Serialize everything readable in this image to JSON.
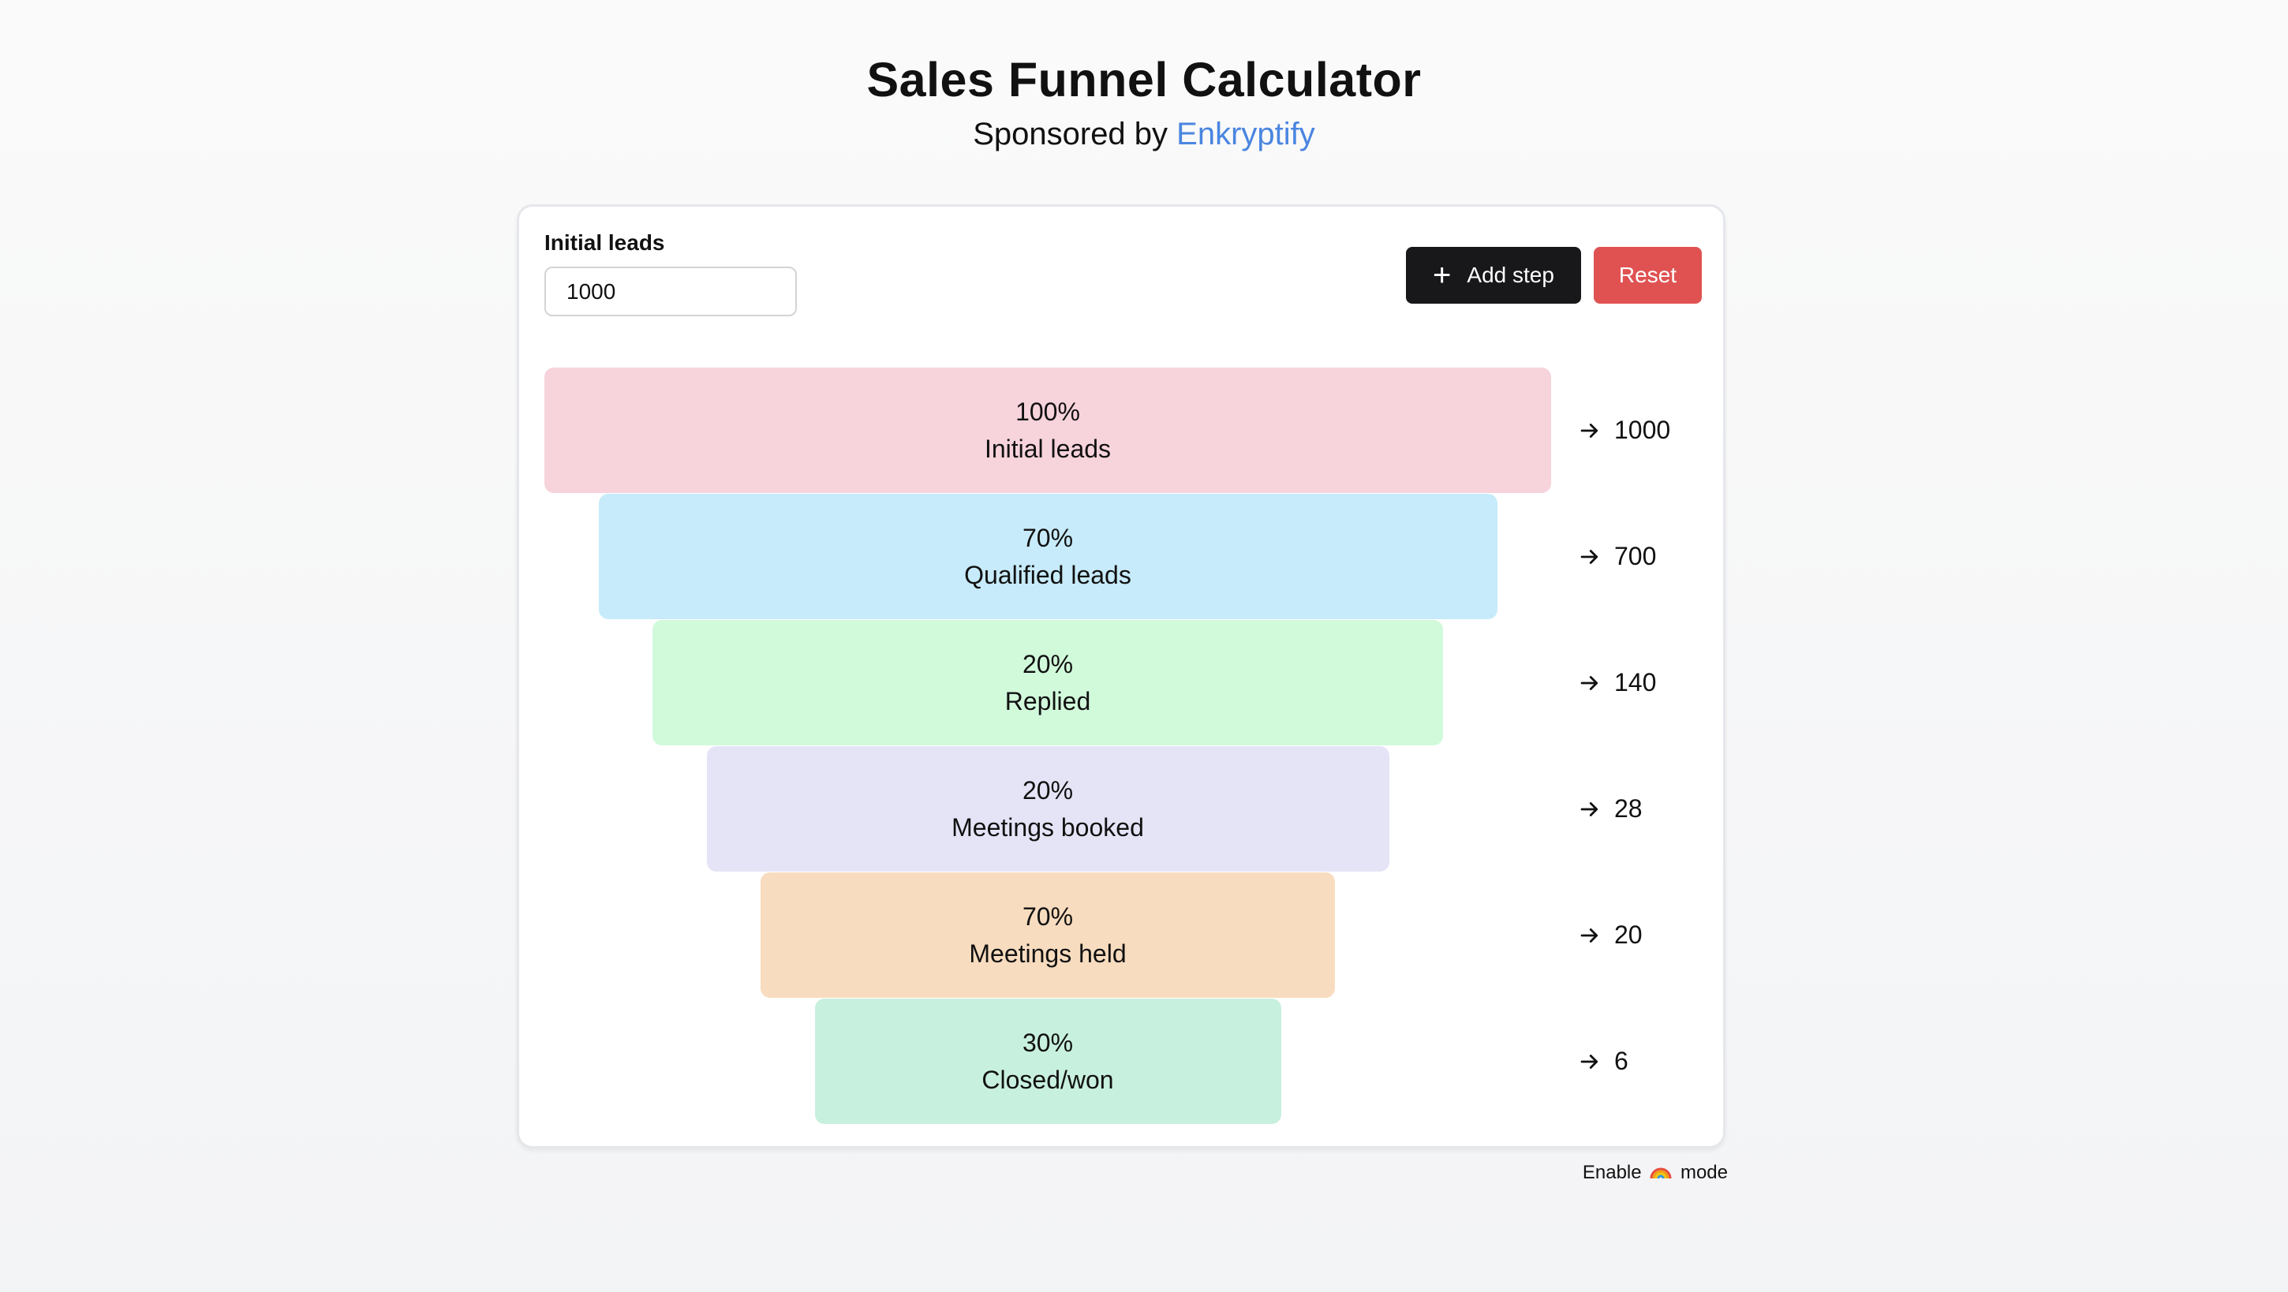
{
  "header": {
    "title": "Sales Funnel Calculator",
    "sponsor_prefix": "Sponsored by",
    "sponsor_name": "Enkryptify",
    "sponsor_color": "#4a86e0"
  },
  "controls": {
    "initial_leads_label": "Initial leads",
    "initial_leads_value": "1000",
    "add_step_label": "Add step",
    "add_step_icon": "plus-icon",
    "reset_label": "Reset",
    "reset_color": "#e05252"
  },
  "funnel": {
    "stages": [
      {
        "percent": "100%",
        "label": "Initial leads",
        "result": "1000",
        "color": "#f7d3dc"
      },
      {
        "percent": "70%",
        "label": "Qualified leads",
        "result": "700",
        "color": "#c7ebfa"
      },
      {
        "percent": "20%",
        "label": "Replied",
        "result": "140",
        "color": "#d1fadb"
      },
      {
        "percent": "20%",
        "label": "Meetings booked",
        "result": "28",
        "color": "#e5e4f7"
      },
      {
        "percent": "70%",
        "label": "Meetings held",
        "result": "20",
        "color": "#f8dcbf"
      },
      {
        "percent": "30%",
        "label": "Closed/won",
        "result": "6",
        "color": "#c8f0de"
      }
    ],
    "result_icon": "arrow-right-icon"
  },
  "footer": {
    "toggle_prefix": "Enable",
    "toggle_icon": "rainbow-icon",
    "toggle_suffix": "mode"
  }
}
